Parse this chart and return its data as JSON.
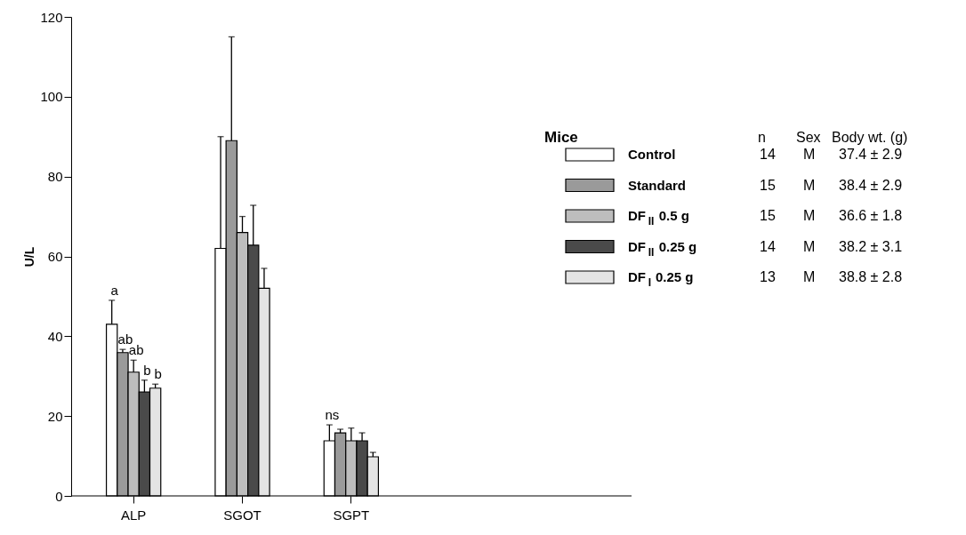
{
  "chart_data": {
    "type": "bar",
    "ylabel": "U/L",
    "legend_title": "Mice",
    "legend": "right",
    "grid": false,
    "categories": [
      "ALP",
      "SGOT",
      "SGPT"
    ],
    "ylim": [
      0,
      120
    ],
    "yticks": [
      0,
      20,
      40,
      60,
      80,
      100,
      120
    ],
    "series": [
      {
        "name": "Control",
        "color": "#ffffff",
        "values": [
          43,
          62,
          13.8
        ],
        "errors": [
          6,
          28,
          4
        ],
        "value_labels": [
          "a",
          null,
          "ns"
        ]
      },
      {
        "name": "Standard",
        "color": "#9a9a9a",
        "values": [
          35.9,
          89,
          15.8
        ],
        "errors": [
          0.8,
          26,
          0.9
        ],
        "value_labels": [
          "ab",
          null,
          null
        ]
      },
      {
        "name": "DF$_{II}$ 0.5 g",
        "color": "#bdbdbd",
        "values": [
          31,
          66,
          13.8
        ],
        "errors": [
          3,
          4,
          3.2
        ],
        "value_labels": [
          "ab",
          null,
          null
        ]
      },
      {
        "name": "DF$_{II}$ 0.25 g",
        "color": "#4a4a4a",
        "values": [
          26,
          62.8,
          13.8
        ],
        "errors": [
          3,
          10,
          2
        ],
        "value_labels": [
          "b",
          null,
          null
        ]
      },
      {
        "name": "DF$_{I}$ 0.25 g",
        "color": "#e4e4e4",
        "values": [
          27,
          52,
          9.8
        ],
        "errors": [
          1,
          5,
          1.1
        ],
        "value_labels": [
          "b",
          null,
          null
        ]
      }
    ],
    "annotations": [
      "n",
      "Sex",
      "Body wt. (g)",
      "14",
      "M",
      "37.4 ± 2.9",
      "15",
      "M",
      "38.4 ± 2.9",
      "15",
      "M",
      "36.6 ± 1.8",
      "14",
      "M",
      "38.2 ± 3.1",
      "13",
      "M",
      "38.8 ± 2.8"
    ]
  }
}
